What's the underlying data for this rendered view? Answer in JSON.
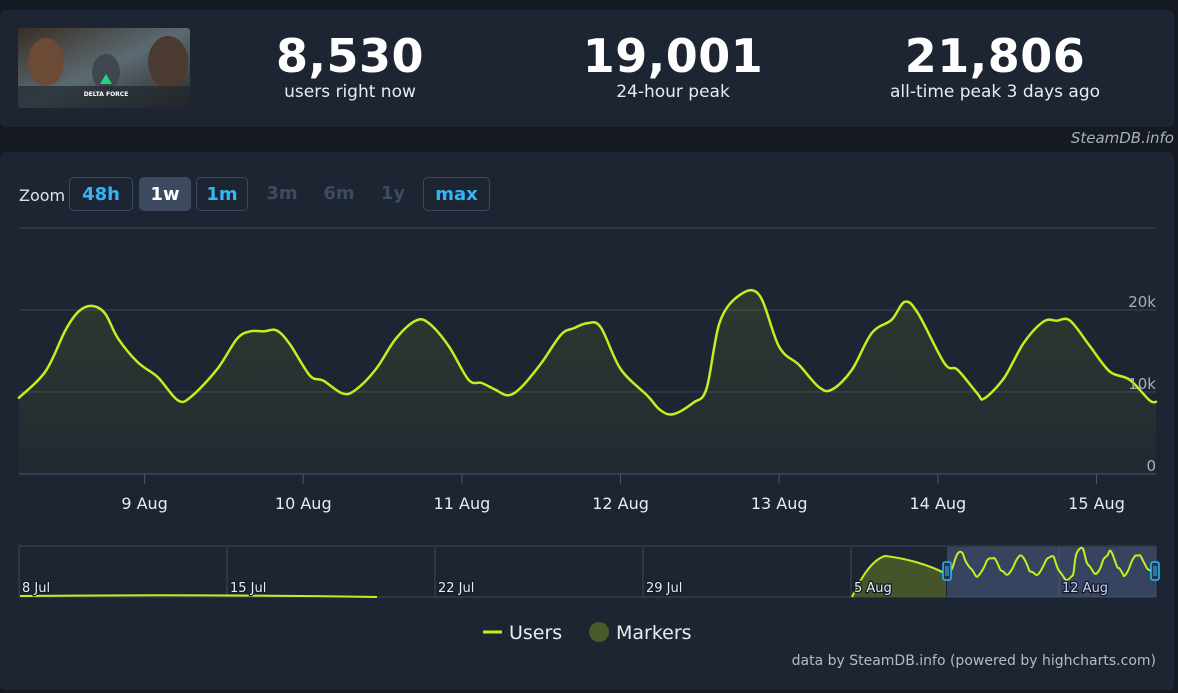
{
  "stats": [
    {
      "value": "8,530",
      "label": "users right now"
    },
    {
      "value": "19,001",
      "label": "24-hour peak"
    },
    {
      "value": "21,806",
      "label": "all-time peak 3 days ago"
    }
  ],
  "game_thumb": {
    "logo_text": "DELTA FORCE"
  },
  "credit": "SteamDB.info",
  "zoom": {
    "label": "Zoom",
    "buttons": [
      {
        "label": "48h",
        "state": "enabled"
      },
      {
        "label": "1w",
        "state": "active"
      },
      {
        "label": "1m",
        "state": "enabled"
      },
      {
        "label": "3m",
        "state": "disabled"
      },
      {
        "label": "6m",
        "state": "disabled"
      },
      {
        "label": "1y",
        "state": "disabled"
      },
      {
        "label": "max",
        "state": "enabled"
      }
    ]
  },
  "chart_data": {
    "type": "line",
    "series": [
      {
        "name": "Users",
        "color": "#c0f020",
        "points": [
          [
            "2024-08-08 05:00",
            9300
          ],
          [
            "2024-08-08 09:00",
            12500
          ],
          [
            "2024-08-08 12:00",
            17500
          ],
          [
            "2024-08-08 14:00",
            19800
          ],
          [
            "2024-08-08 16:00",
            20500
          ],
          [
            "2024-08-08 18:00",
            19600
          ],
          [
            "2024-08-08 20:00",
            16500
          ],
          [
            "2024-08-08 23:00",
            13600
          ],
          [
            "2024-08-09 02:00",
            11800
          ],
          [
            "2024-08-09 05:00",
            9000
          ],
          [
            "2024-08-09 07:00",
            9400
          ],
          [
            "2024-08-09 11:00",
            12800
          ],
          [
            "2024-08-09 14:00",
            16500
          ],
          [
            "2024-08-09 16:00",
            17400
          ],
          [
            "2024-08-09 18:00",
            17400
          ],
          [
            "2024-08-09 20:00",
            17500
          ],
          [
            "2024-08-09 22:00",
            15800
          ],
          [
            "2024-08-10 01:00",
            12000
          ],
          [
            "2024-08-10 03:00",
            11400
          ],
          [
            "2024-08-10 06:00",
            9800
          ],
          [
            "2024-08-10 08:00",
            10300
          ],
          [
            "2024-08-10 11:00",
            12800
          ],
          [
            "2024-08-10 14:00",
            16500
          ],
          [
            "2024-08-10 17:00",
            18700
          ],
          [
            "2024-08-10 19:00",
            18400
          ],
          [
            "2024-08-10 22:00",
            15600
          ],
          [
            "2024-08-11 01:00",
            11500
          ],
          [
            "2024-08-11 03:00",
            11100
          ],
          [
            "2024-08-11 05:00",
            10300
          ],
          [
            "2024-08-11 07:00",
            9600
          ],
          [
            "2024-08-11 09:00",
            10600
          ],
          [
            "2024-08-11 12:00",
            13500
          ],
          [
            "2024-08-11 15:00",
            17000
          ],
          [
            "2024-08-11 17:00",
            17800
          ],
          [
            "2024-08-11 19:00",
            18400
          ],
          [
            "2024-08-11 21:00",
            17900
          ],
          [
            "2024-08-12 00:00",
            12800
          ],
          [
            "2024-08-12 04:00",
            9600
          ],
          [
            "2024-08-12 06:00",
            7800
          ],
          [
            "2024-08-12 08:00",
            7300
          ],
          [
            "2024-08-12 11:00",
            8700
          ],
          [
            "2024-08-12 13:00",
            10400
          ],
          [
            "2024-08-12 15:00",
            18500
          ],
          [
            "2024-08-12 18:00",
            21800
          ],
          [
            "2024-08-12 21:00",
            21800
          ],
          [
            "2024-08-13 00:00",
            15500
          ],
          [
            "2024-08-13 03:00",
            13300
          ],
          [
            "2024-08-13 06:00",
            10600
          ],
          [
            "2024-08-13 08:00",
            10300
          ],
          [
            "2024-08-13 11:00",
            12700
          ],
          [
            "2024-08-13 14:00",
            17200
          ],
          [
            "2024-08-13 17:00",
            18800
          ],
          [
            "2024-08-13 19:00",
            21000
          ],
          [
            "2024-08-13 21:00",
            19600
          ],
          [
            "2024-08-14 01:00",
            13500
          ],
          [
            "2024-08-14 03:00",
            12700
          ],
          [
            "2024-08-14 06:00",
            9800
          ],
          [
            "2024-08-14 07:00",
            9200
          ],
          [
            "2024-08-14 10:00",
            11700
          ],
          [
            "2024-08-14 13:00",
            16000
          ],
          [
            "2024-08-14 16:00",
            18600
          ],
          [
            "2024-08-14 18:00",
            18700
          ],
          [
            "2024-08-14 20:00",
            18700
          ],
          [
            "2024-08-14 23:00",
            15600
          ],
          [
            "2024-08-15 02:00",
            12500
          ],
          [
            "2024-08-15 05:00",
            11500
          ],
          [
            "2024-08-15 08:00",
            9000
          ],
          [
            "2024-08-15 09:00",
            8800
          ]
        ]
      }
    ],
    "xaxis": {
      "type": "datetime",
      "range": [
        "2024-08-08 05:00",
        "2024-08-15 09:00"
      ],
      "ticks": [
        "9 Aug",
        "10 Aug",
        "11 Aug",
        "12 Aug",
        "13 Aug",
        "14 Aug",
        "15 Aug"
      ]
    },
    "yaxis": {
      "ticks": [
        "0",
        "10k",
        "20k"
      ],
      "tick_values": [
        0,
        10000,
        20000
      ],
      "range": [
        0,
        30000
      ],
      "position": "right"
    },
    "grid": true
  },
  "navigator": {
    "date_labels": [
      "8 Jul",
      "15 Jul",
      "22 Jul",
      "29 Jul",
      "5 Aug",
      "12 Aug"
    ]
  },
  "legend": {
    "items": [
      {
        "label": "Users",
        "color": "#c0f020",
        "symbol": "line"
      },
      {
        "label": "Markers",
        "color": "#495a2a",
        "symbol": "circle"
      }
    ]
  },
  "data_credit": "data by SteamDB.info (powered by highcharts.com)"
}
